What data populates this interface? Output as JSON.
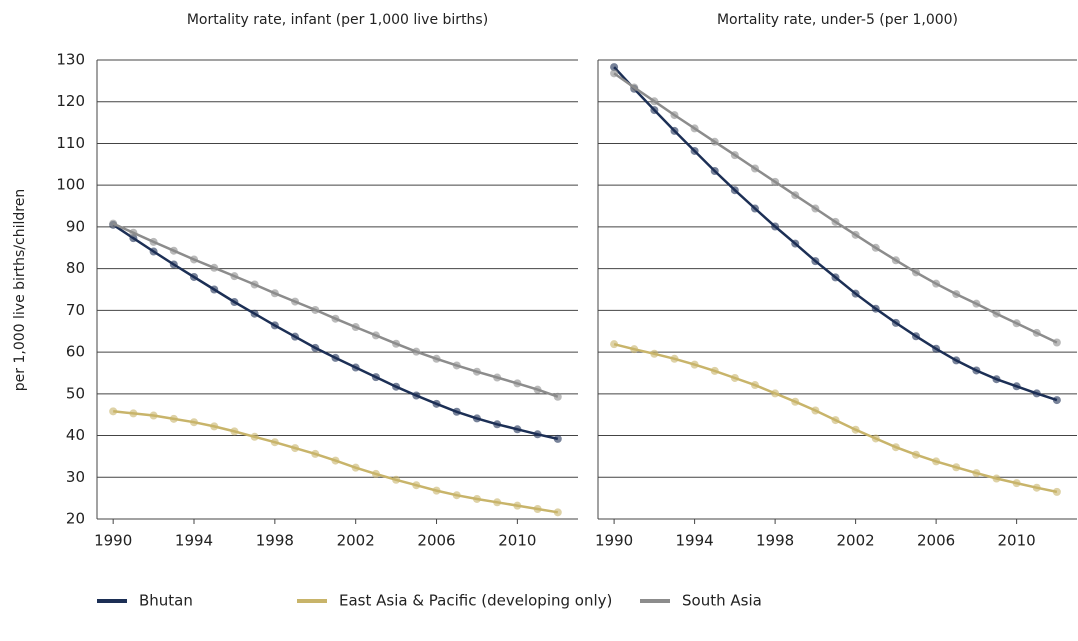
{
  "chart_data": [
    {
      "type": "line",
      "title": "Mortality rate, infant (per 1,000 live births)",
      "ylabel": "per 1,000 live births/children",
      "x": [
        1990,
        1991,
        1992,
        1993,
        1994,
        1995,
        1996,
        1997,
        1998,
        1999,
        2000,
        2001,
        2002,
        2003,
        2004,
        2005,
        2006,
        2007,
        2008,
        2009,
        2010,
        2011,
        2012
      ],
      "series": [
        {
          "name": "Bhutan",
          "color": "#1c2f55",
          "values": [
            90.5,
            87.3,
            84.1,
            81,
            78,
            75,
            72,
            69.2,
            66.4,
            63.7,
            61,
            58.6,
            56.3,
            54,
            51.7,
            49.6,
            47.6,
            45.7,
            44.1,
            42.7,
            41.5,
            40.3,
            39.2
          ]
        },
        {
          "name": "East Asia & Pacific (developing only)",
          "color": "#c8b46a",
          "values": [
            45.8,
            45.3,
            44.8,
            44,
            43.2,
            42.2,
            41,
            39.7,
            38.4,
            37,
            35.6,
            34,
            32.3,
            30.8,
            29.4,
            28.1,
            26.8,
            25.7,
            24.8,
            24,
            23.2,
            22.4,
            21.6
          ]
        },
        {
          "name": "South Asia",
          "color": "#8c8c8c",
          "values": [
            90.8,
            88.6,
            86.4,
            84.3,
            82.2,
            80.2,
            78.2,
            76.2,
            74.1,
            72.1,
            70.1,
            68,
            66,
            64,
            62,
            60.1,
            58.4,
            56.8,
            55.3,
            53.9,
            52.5,
            51,
            49.3
          ]
        }
      ],
      "xlim": [
        1989.2,
        2013
      ],
      "xticks": [
        1990,
        1994,
        1998,
        2002,
        2006,
        2010
      ],
      "ylim": [
        20,
        130
      ],
      "yticks": [
        20,
        30,
        40,
        50,
        60,
        70,
        80,
        90,
        100,
        110,
        120,
        130
      ],
      "grid": true
    },
    {
      "type": "line",
      "title": "Mortality rate, under-5 (per 1,000)",
      "x": [
        1990,
        1991,
        1992,
        1993,
        1994,
        1995,
        1996,
        1997,
        1998,
        1999,
        2000,
        2001,
        2002,
        2003,
        2004,
        2005,
        2006,
        2007,
        2008,
        2009,
        2010,
        2011,
        2012
      ],
      "series": [
        {
          "color": "#1c2f55",
          "values": [
            128.3,
            123.1,
            118,
            113,
            108.2,
            103.4,
            98.8,
            94.4,
            90.1,
            86,
            81.8,
            77.9,
            74,
            70.4,
            67,
            63.8,
            60.8,
            58,
            55.6,
            53.5,
            51.8,
            50.1,
            48.5
          ]
        },
        {
          "color": "#c8b46a",
          "values": [
            61.9,
            60.7,
            59.6,
            58.4,
            57,
            55.5,
            53.8,
            52.1,
            50.1,
            48.1,
            46,
            43.7,
            41.4,
            39.3,
            37.2,
            35.4,
            33.8,
            32.4,
            31,
            29.7,
            28.6,
            27.5,
            26.5
          ]
        },
        {
          "color": "#8c8c8c",
          "values": [
            126.8,
            123.4,
            120.1,
            116.8,
            113.6,
            110.4,
            107.2,
            104,
            100.8,
            97.6,
            94.4,
            91.2,
            88.1,
            85,
            82,
            79.1,
            76.4,
            73.9,
            71.6,
            69.2,
            66.9,
            64.6,
            62.3
          ]
        }
      ],
      "xlim": [
        1989.2,
        2013
      ],
      "xticks": [
        1990,
        1994,
        1998,
        2002,
        2006,
        2010
      ],
      "ylim": [
        20,
        130
      ],
      "yticks": [
        20,
        30,
        40,
        50,
        60,
        70,
        80,
        90,
        100,
        110,
        120,
        130
      ],
      "grid": true
    }
  ]
}
